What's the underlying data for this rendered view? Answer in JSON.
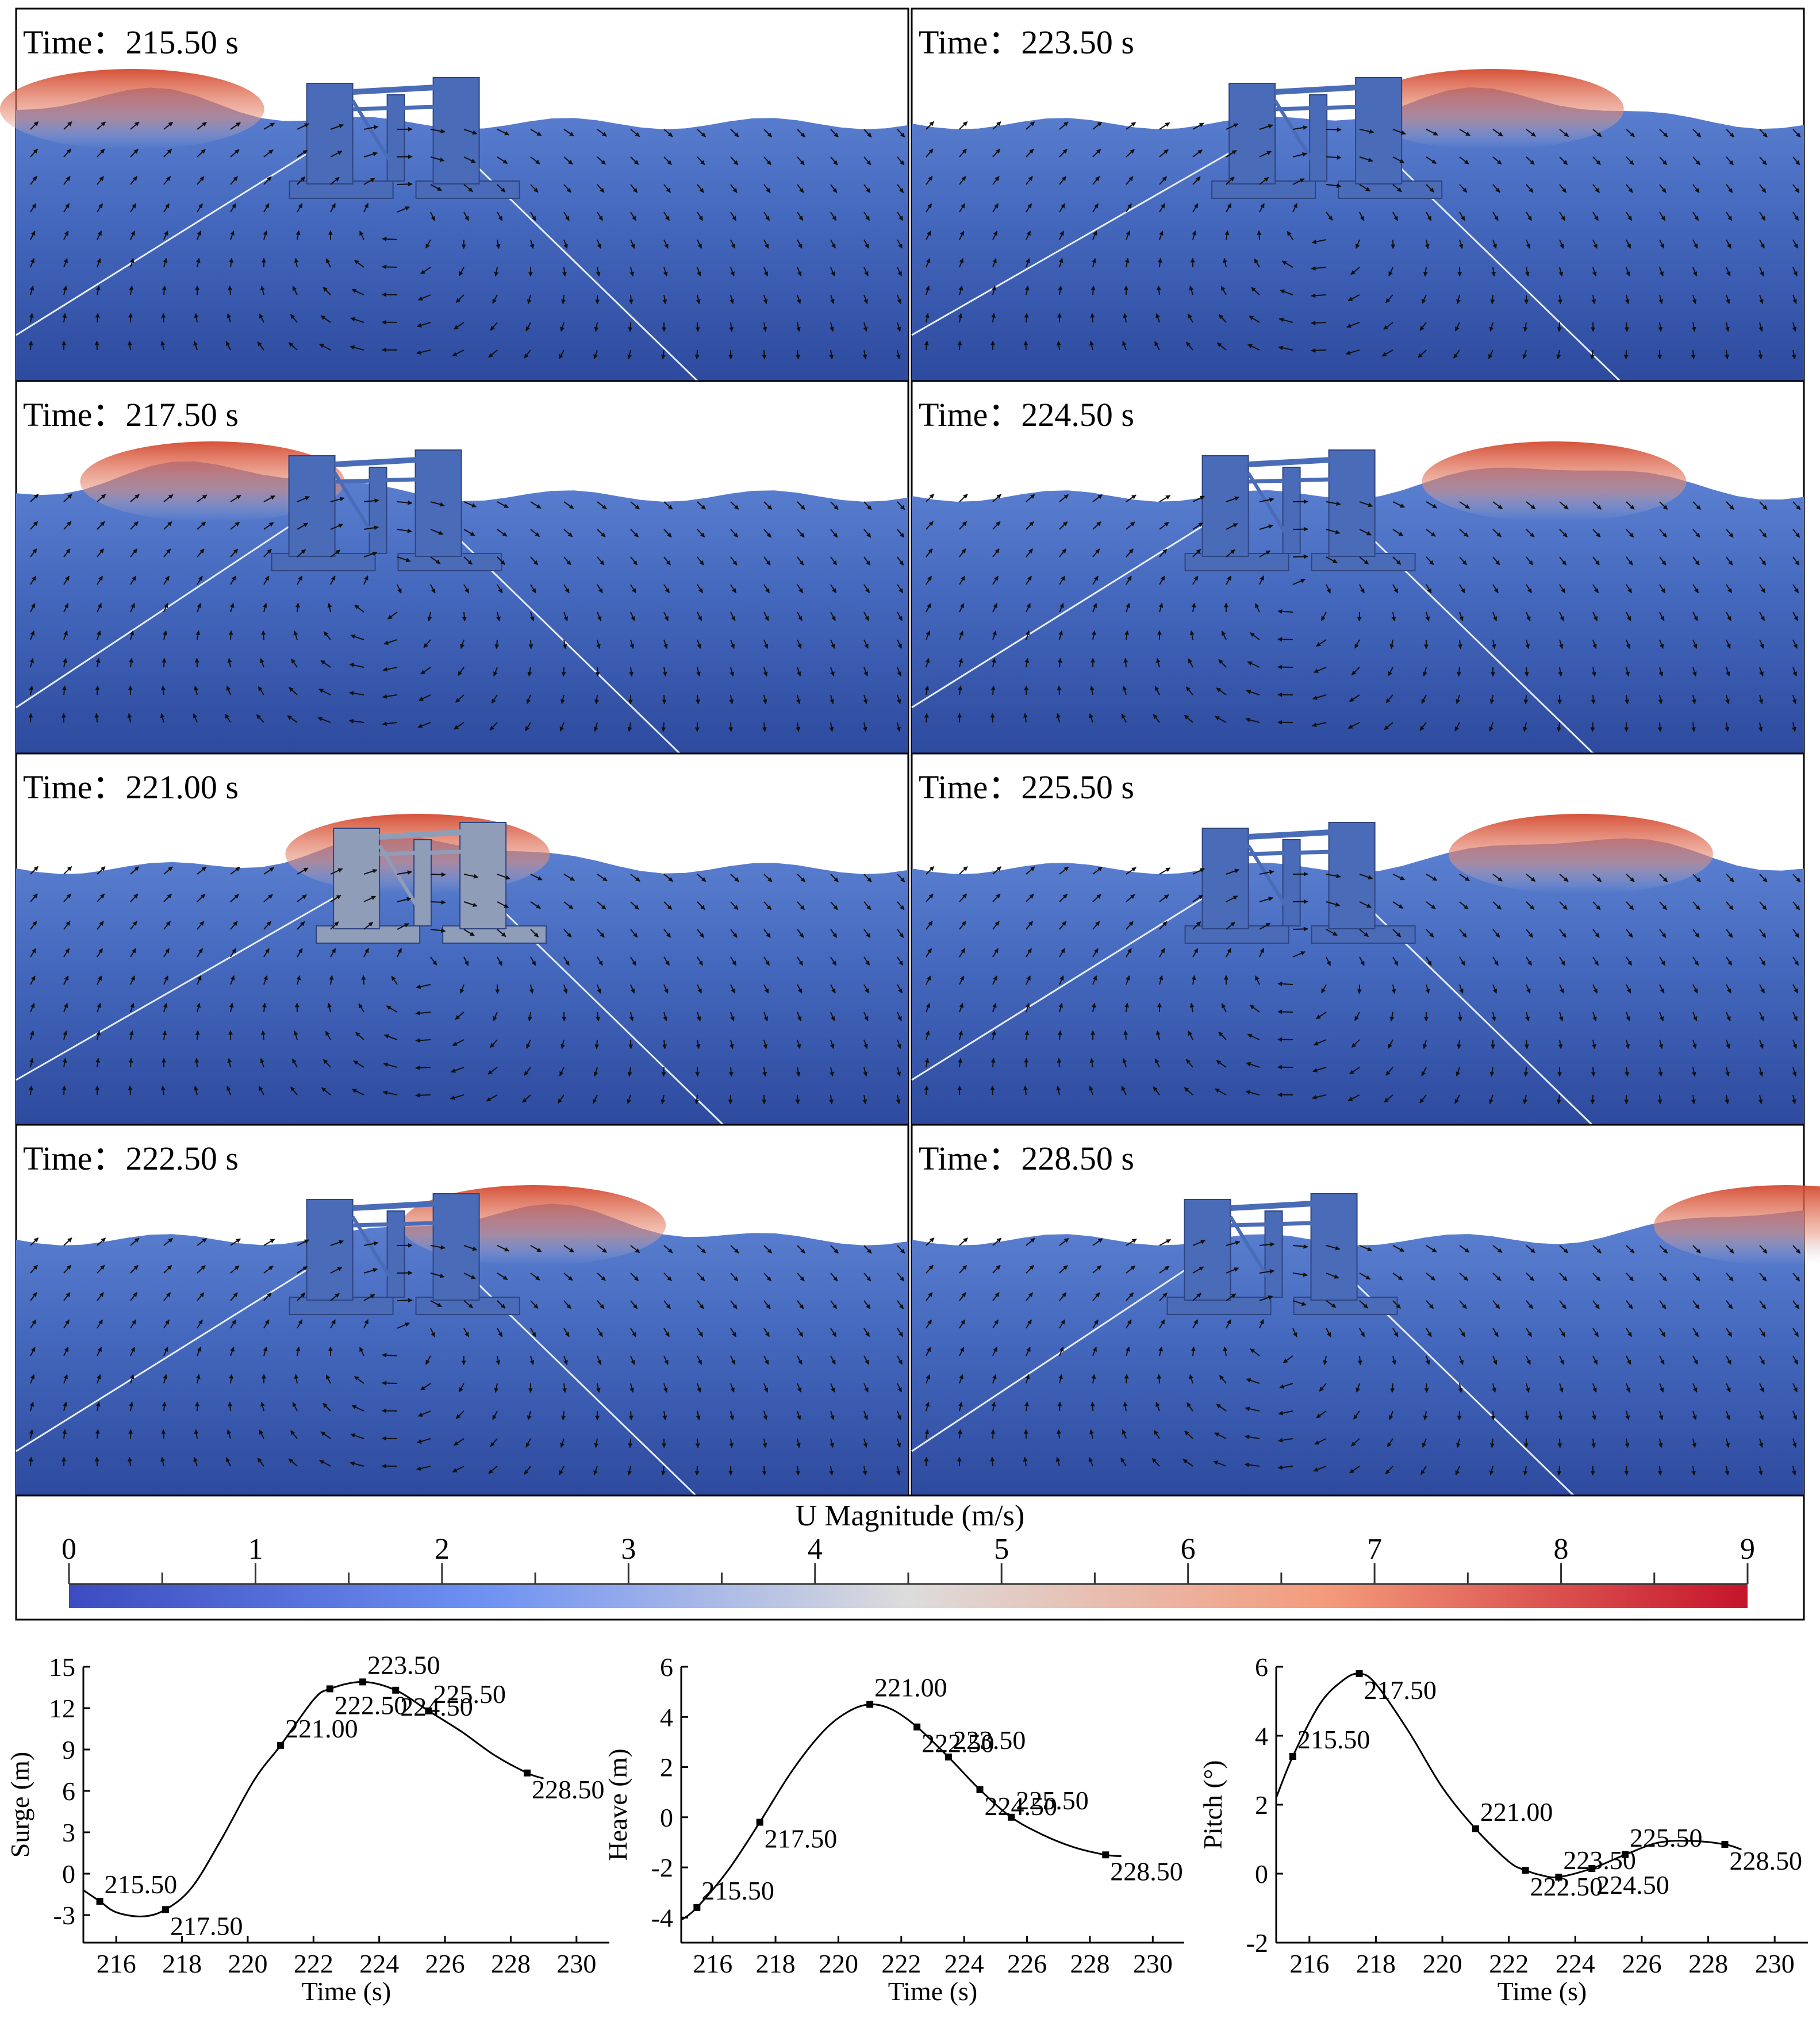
{
  "panels": [
    {
      "time_label": "Time：215.50 s"
    },
    {
      "time_label": "Time：223.50 s"
    },
    {
      "time_label": "Time：217.50 s"
    },
    {
      "time_label": "Time：224.50 s"
    },
    {
      "time_label": "Time：221.00 s"
    },
    {
      "time_label": "Time：225.50 s"
    },
    {
      "time_label": "Time：222.50 s"
    },
    {
      "time_label": "Time：228.50 s"
    }
  ],
  "colorbar": {
    "title": "U Magnitude (m/s)",
    "ticks": [
      "0",
      "1",
      "2",
      "3",
      "4",
      "5",
      "6",
      "7",
      "8",
      "9"
    ],
    "range": [
      0,
      9
    ],
    "colors": [
      "#3b4cc0",
      "#8db0fe",
      "#dddcdc",
      "#f49a7b",
      "#b40426"
    ]
  },
  "colors": {
    "water_deep": "#2f4ea0",
    "water_mid": "#4a6fc4",
    "platform": "#4a6cb8",
    "crest": "#d6523a",
    "arrow": "#111111",
    "mooring": "#e8eef8"
  },
  "chart_data": [
    {
      "type": "line",
      "title": "",
      "xlabel": "Time (s)",
      "ylabel": "Surge (m)",
      "xlim": [
        215,
        231
      ],
      "ylim": [
        -5,
        15
      ],
      "xticks": [
        216,
        218,
        220,
        222,
        224,
        226,
        228,
        230
      ],
      "yticks": [
        -3,
        0,
        3,
        6,
        9,
        12,
        15
      ],
      "x": [
        215.0,
        215.5,
        216.0,
        216.8,
        217.5,
        218.3,
        219.2,
        220.2,
        221.0,
        222.0,
        222.5,
        223.5,
        224.5,
        225.5,
        226.5,
        227.5,
        228.5,
        229.0
      ],
      "y": [
        -1.2,
        -2.0,
        -2.8,
        -3.1,
        -2.6,
        -1.0,
        2.5,
        6.8,
        9.3,
        12.6,
        13.4,
        13.9,
        13.3,
        11.8,
        10.3,
        8.6,
        7.3,
        6.9
      ],
      "points": [
        {
          "x": 215.5,
          "y": -2.0,
          "label": "215.50"
        },
        {
          "x": 217.5,
          "y": -2.6,
          "label": "217.50"
        },
        {
          "x": 221.0,
          "y": 9.3,
          "label": "221.00"
        },
        {
          "x": 222.5,
          "y": 13.4,
          "label": "222.50"
        },
        {
          "x": 223.5,
          "y": 13.9,
          "label": "223.50"
        },
        {
          "x": 224.5,
          "y": 13.3,
          "label": "224.50"
        },
        {
          "x": 225.5,
          "y": 11.8,
          "label": "225.50"
        },
        {
          "x": 228.5,
          "y": 7.3,
          "label": "228.50"
        }
      ]
    },
    {
      "type": "line",
      "title": "",
      "xlabel": "Time (s)",
      "ylabel": "Heave (m)",
      "xlim": [
        215,
        231
      ],
      "ylim": [
        -5,
        6
      ],
      "xticks": [
        216,
        218,
        220,
        222,
        224,
        226,
        228,
        230
      ],
      "yticks": [
        -4,
        -2,
        0,
        2,
        4,
        6
      ],
      "x": [
        215.0,
        215.5,
        216.5,
        217.5,
        218.5,
        219.5,
        220.3,
        221.0,
        221.7,
        222.5,
        223.5,
        224.5,
        225.5,
        226.5,
        227.5,
        228.5,
        229.0
      ],
      "y": [
        -4.1,
        -3.6,
        -2.1,
        -0.2,
        1.8,
        3.4,
        4.2,
        4.5,
        4.3,
        3.6,
        2.4,
        1.1,
        0.0,
        -0.7,
        -1.2,
        -1.5,
        -1.55
      ],
      "points": [
        {
          "x": 215.5,
          "y": -3.6,
          "label": "215.50"
        },
        {
          "x": 217.5,
          "y": -0.2,
          "label": "217.50"
        },
        {
          "x": 221.0,
          "y": 4.5,
          "label": "221.00"
        },
        {
          "x": 222.5,
          "y": 3.6,
          "label": "222.50"
        },
        {
          "x": 223.5,
          "y": 2.4,
          "label": "223.50"
        },
        {
          "x": 224.5,
          "y": 1.1,
          "label": "224.50"
        },
        {
          "x": 225.5,
          "y": 0.0,
          "label": "225.50"
        },
        {
          "x": 228.5,
          "y": -1.5,
          "label": "228.50"
        }
      ]
    },
    {
      "type": "line",
      "title": "",
      "xlabel": "Time (s)",
      "ylabel": "Pitch (°)",
      "xlim": [
        215,
        231
      ],
      "ylim": [
        -2,
        6
      ],
      "xticks": [
        216,
        218,
        220,
        222,
        224,
        226,
        228,
        230
      ],
      "yticks": [
        -2,
        0,
        2,
        4,
        6
      ],
      "x": [
        215.0,
        215.5,
        216.3,
        217.0,
        217.5,
        218.0,
        219.0,
        220.0,
        221.0,
        222.0,
        222.5,
        223.0,
        223.5,
        224.5,
        225.5,
        226.5,
        227.5,
        228.5,
        229.0
      ],
      "y": [
        2.2,
        3.4,
        4.9,
        5.6,
        5.8,
        5.5,
        4.1,
        2.5,
        1.3,
        0.35,
        0.1,
        -0.05,
        -0.1,
        0.15,
        0.55,
        0.9,
        0.95,
        0.85,
        0.7
      ],
      "points": [
        {
          "x": 215.5,
          "y": 3.4,
          "label": "215.50"
        },
        {
          "x": 217.5,
          "y": 5.8,
          "label": "217.50"
        },
        {
          "x": 221.0,
          "y": 1.3,
          "label": "221.00"
        },
        {
          "x": 222.5,
          "y": 0.1,
          "label": "222.50"
        },
        {
          "x": 223.5,
          "y": -0.1,
          "label": "223.50"
        },
        {
          "x": 224.5,
          "y": 0.15,
          "label": "224.50"
        },
        {
          "x": 225.5,
          "y": 0.55,
          "label": "225.50"
        },
        {
          "x": 228.5,
          "y": 0.85,
          "label": "228.50"
        }
      ]
    }
  ]
}
